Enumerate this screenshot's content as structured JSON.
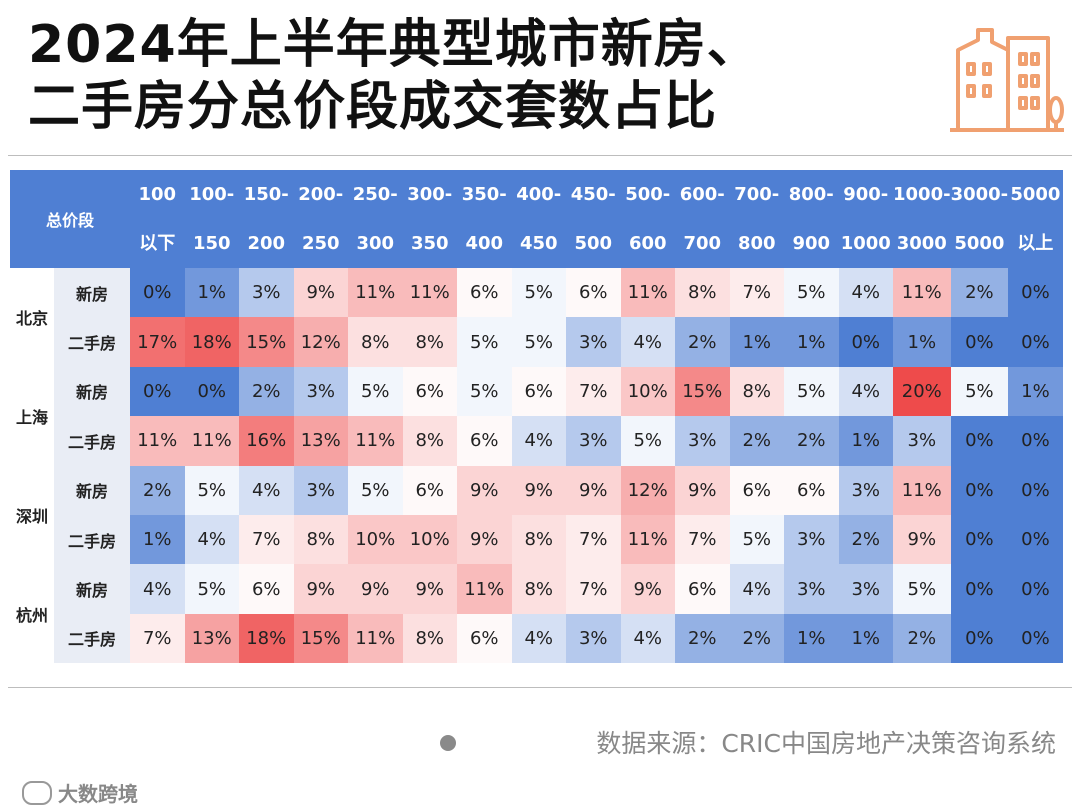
{
  "title": {
    "line1": "2024年上半年典型城市新房、",
    "line2": "二手房分总价段成交套数占比"
  },
  "source": "数据来源：CRIC中国房地产决策咨询系统",
  "logo_text": "大数跨境",
  "colors": {
    "header_bg": "#4f7fd3",
    "high": "#ee4b4b",
    "low": "#4f7fd3",
    "mid": "#ffffff"
  },
  "chart_data": {
    "type": "heatmap",
    "row_header_label": "总价段",
    "columns": [
      [
        "100",
        "以下"
      ],
      [
        "100-",
        "150"
      ],
      [
        "150-",
        "200"
      ],
      [
        "200-",
        "250"
      ],
      [
        "250-",
        "300"
      ],
      [
        "300-",
        "350"
      ],
      [
        "350-",
        "400"
      ],
      [
        "400-",
        "450"
      ],
      [
        "450-",
        "500"
      ],
      [
        "500-",
        "600"
      ],
      [
        "600-",
        "700"
      ],
      [
        "700-",
        "800"
      ],
      [
        "800-",
        "900"
      ],
      [
        "900-",
        "1000"
      ],
      [
        "1000-",
        "3000"
      ],
      [
        "3000-",
        "5000"
      ],
      [
        "5000",
        "以上"
      ]
    ],
    "cities": [
      {
        "name": "北京",
        "rows": [
          {
            "type": "新房",
            "values": [
              0,
              1,
              3,
              9,
              11,
              11,
              6,
              5,
              6,
              11,
              8,
              7,
              5,
              4,
              11,
              2,
              0
            ]
          },
          {
            "type": "二手房",
            "values": [
              17,
              18,
              15,
              12,
              8,
              8,
              5,
              5,
              3,
              4,
              2,
              1,
              1,
              0,
              1,
              0,
              0
            ]
          }
        ]
      },
      {
        "name": "上海",
        "rows": [
          {
            "type": "新房",
            "values": [
              0,
              0,
              2,
              3,
              5,
              6,
              5,
              6,
              7,
              10,
              15,
              8,
              5,
              4,
              20,
              5,
              1
            ]
          },
          {
            "type": "二手房",
            "values": [
              11,
              11,
              16,
              13,
              11,
              8,
              6,
              4,
              3,
              5,
              3,
              2,
              2,
              1,
              3,
              0,
              0
            ]
          }
        ]
      },
      {
        "name": "深圳",
        "rows": [
          {
            "type": "新房",
            "values": [
              2,
              5,
              4,
              3,
              5,
              6,
              9,
              9,
              9,
              12,
              9,
              6,
              6,
              3,
              11,
              0,
              0
            ]
          },
          {
            "type": "二手房",
            "values": [
              1,
              4,
              7,
              8,
              10,
              10,
              9,
              8,
              7,
              11,
              7,
              5,
              3,
              2,
              9,
              0,
              0
            ]
          }
        ]
      },
      {
        "name": "杭州",
        "rows": [
          {
            "type": "新房",
            "values": [
              4,
              5,
              6,
              9,
              9,
              9,
              11,
              8,
              7,
              9,
              6,
              4,
              3,
              3,
              5,
              0,
              0
            ]
          },
          {
            "type": "二手房",
            "values": [
              7,
              13,
              18,
              15,
              11,
              8,
              6,
              4,
              3,
              4,
              2,
              2,
              1,
              1,
              2,
              0,
              0
            ]
          }
        ]
      }
    ],
    "unit": "%"
  }
}
